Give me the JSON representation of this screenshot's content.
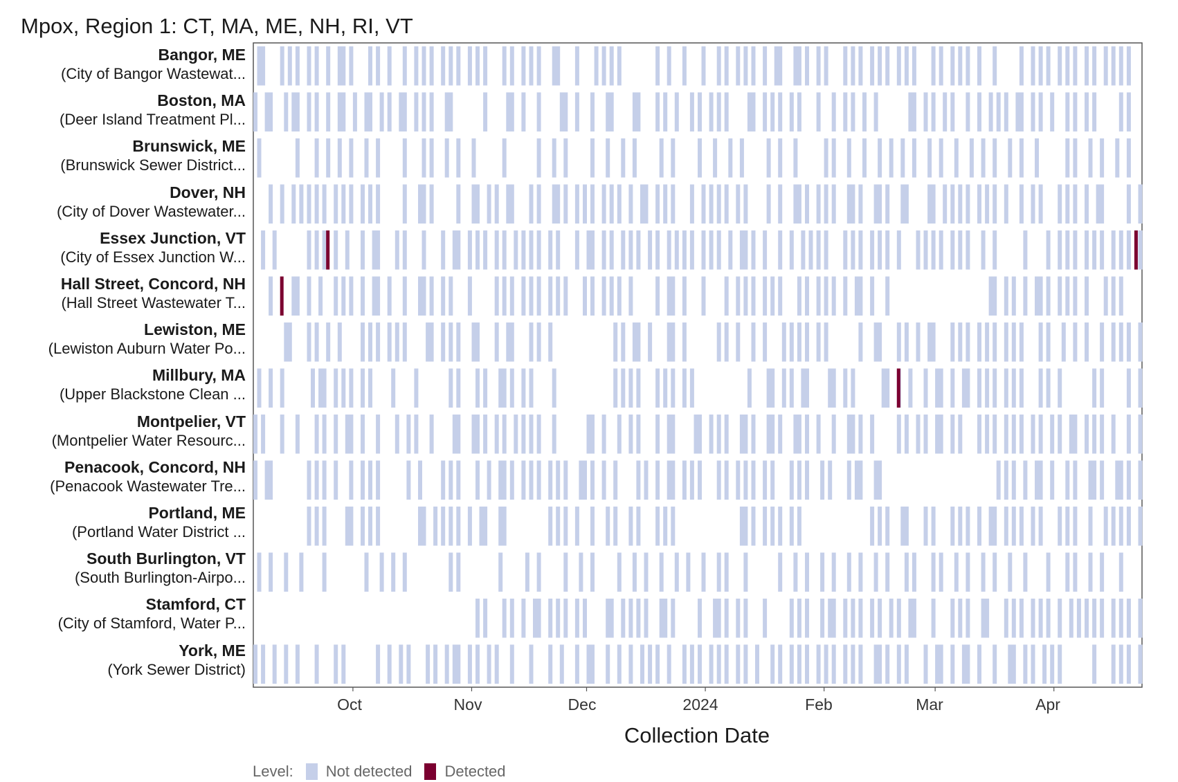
{
  "chart_data": {
    "type": "tile-timeline",
    "title": "Mpox, Region 1: CT, MA, ME, NH, RI, VT",
    "xlabel": "Collection Date",
    "x_ticks": [
      "Oct",
      "Nov",
      "Dec",
      "2024",
      "Feb",
      "Mar",
      "Apr"
    ],
    "x_range": [
      "2023-09-05",
      "2024-04-24"
    ],
    "legend": {
      "title": "Level:",
      "items": [
        "Not detected",
        "Detected"
      ]
    },
    "colors": {
      "not_detected": "#c5cfe9",
      "detected": "#7b0030"
    },
    "sites": [
      {
        "name": "Bangor, ME",
        "facility": "(City of Bangor Wastewat...",
        "detected_dates": []
      },
      {
        "name": "Boston, MA",
        "facility": "(Deer Island Treatment Pl...",
        "detected_dates": []
      },
      {
        "name": "Brunswick, ME",
        "facility": "(Brunswick Sewer District...",
        "detected_dates": []
      },
      {
        "name": "Dover, NH",
        "facility": "(City of Dover Wastewater...",
        "detected_dates": []
      },
      {
        "name": "Essex Junction, VT",
        "facility": "(City of Essex Junction W...",
        "detected_dates": [
          "2023-09-24",
          "2024-04-22"
        ]
      },
      {
        "name": "Hall Street, Concord, NH",
        "facility": "(Hall Street Wastewater T...",
        "detected_dates": [
          "2023-09-12"
        ]
      },
      {
        "name": "Lewiston, ME",
        "facility": "(Lewiston Auburn Water Po...",
        "detected_dates": []
      },
      {
        "name": "Millbury, MA",
        "facility": "(Upper Blackstone Clean ...",
        "detected_dates": [
          "2024-02-20"
        ]
      },
      {
        "name": "Montpelier, VT",
        "facility": "(Montpelier Water Resourc...",
        "detected_dates": []
      },
      {
        "name": "Penacook, Concord, NH",
        "facility": "(Penacook Wastewater Tre...",
        "detected_dates": []
      },
      {
        "name": "Portland, ME",
        "facility": "(Portland Water District ...",
        "detected_dates": []
      },
      {
        "name": "South Burlington, VT",
        "facility": "(South Burlington-Airpo...",
        "detected_dates": []
      },
      {
        "name": "Stamford, CT",
        "facility": "(City of Stamford, Water P...",
        "detected_dates": []
      },
      {
        "name": "York, ME",
        "facility": "(York Sewer District)",
        "detected_dates": []
      }
    ]
  }
}
